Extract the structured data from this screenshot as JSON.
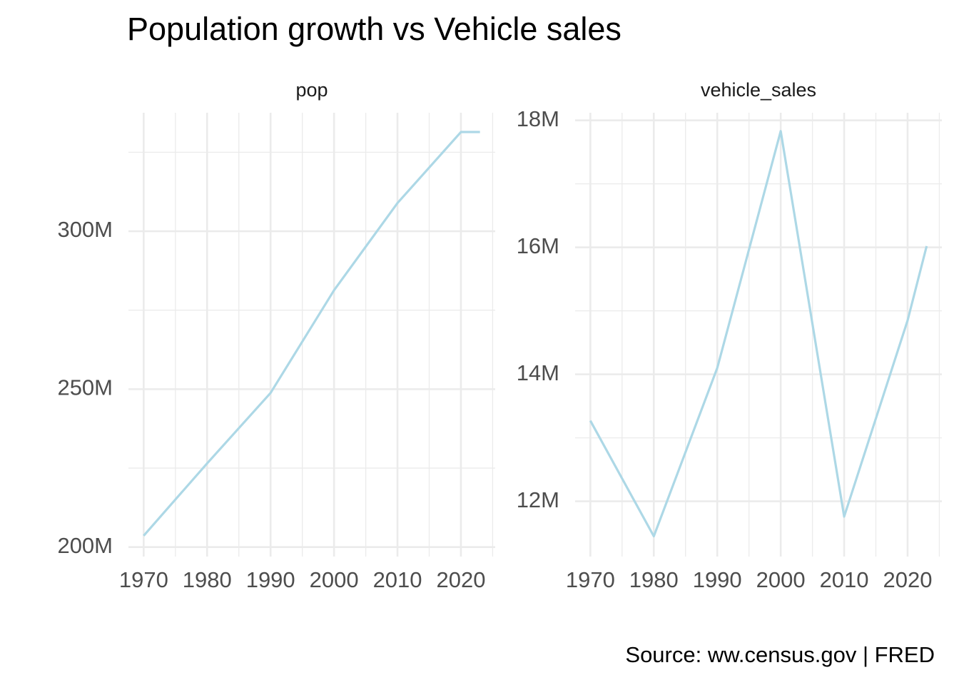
{
  "title": "Population growth vs Vehicle sales",
  "caption": "Source: ww.census.gov | FRED",
  "chart_data": [
    {
      "type": "line",
      "title": "pop",
      "x": [
        1970,
        1980,
        1990,
        2000,
        2010,
        2020,
        2023
      ],
      "values": [
        203.6,
        226.5,
        248.8,
        281.3,
        308.9,
        331.4,
        331.4
      ],
      "color": "#add8e6",
      "xlim": [
        1967.6,
        2025.4
      ],
      "ylim": [
        197,
        337.5
      ],
      "xticks": [
        1970,
        1980,
        1990,
        2000,
        2010,
        2020
      ],
      "yticks": [
        {
          "value": 200,
          "label": "200M"
        },
        {
          "value": 250,
          "label": "250M"
        },
        {
          "value": 300,
          "label": "300M"
        }
      ],
      "grid": true
    },
    {
      "type": "line",
      "title": "vehicle_sales",
      "x": [
        1970,
        1980,
        1990,
        2000,
        2010,
        2020,
        2023
      ],
      "values": [
        13.27,
        11.45,
        14.1,
        17.83,
        11.76,
        14.85,
        16.02
      ],
      "color": "#add8e6",
      "xlim": [
        1967.6,
        2025.4
      ],
      "ylim": [
        11.13,
        18.12
      ],
      "xticks": [
        1970,
        1980,
        1990,
        2000,
        2010,
        2020
      ],
      "yticks": [
        {
          "value": 12,
          "label": "12M"
        },
        {
          "value": 14,
          "label": "14M"
        },
        {
          "value": 16,
          "label": "16M"
        },
        {
          "value": 18,
          "label": "18M"
        }
      ],
      "grid": true
    }
  ]
}
